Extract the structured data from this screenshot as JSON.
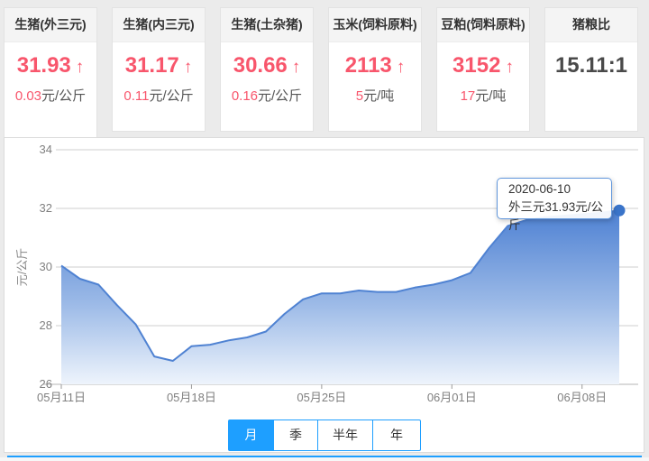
{
  "cards": [
    {
      "title": "生猪(外三元)",
      "value": "31.93",
      "arrow": "↑",
      "change": "0.03",
      "unit": "元/公斤"
    },
    {
      "title": "生猪(内三元)",
      "value": "31.17",
      "arrow": "↑",
      "change": "0.11",
      "unit": "元/公斤"
    },
    {
      "title": "生猪(土杂猪)",
      "value": "30.66",
      "arrow": "↑",
      "change": "0.16",
      "unit": "元/公斤"
    },
    {
      "title": "玉米(饲料原料)",
      "value": "2113",
      "arrow": "↑",
      "change": "5",
      "unit": "元/吨"
    },
    {
      "title": "豆粕(饲料原料)",
      "value": "3152",
      "arrow": "↑",
      "change": "17",
      "unit": "元/吨"
    },
    {
      "title": "猪粮比",
      "value": "15.11:1",
      "arrow": "",
      "change": "",
      "unit": ""
    }
  ],
  "chart_data": {
    "type": "area",
    "series_name": "外三元",
    "ylabel": "元/公斤",
    "ylim": [
      26,
      34
    ],
    "yticks": [
      26,
      28,
      30,
      32,
      34
    ],
    "xtick_labels": [
      "05月11日",
      "05月18日",
      "05月25日",
      "06月01日",
      "06月08日"
    ],
    "xtick_day_index": [
      0,
      7,
      14,
      21,
      28
    ],
    "x_start_date": "2020-05-11",
    "x_end_date": "2020-06-10",
    "values": [
      30.05,
      29.6,
      29.4,
      28.7,
      28.05,
      26.95,
      26.8,
      27.3,
      27.35,
      27.5,
      27.6,
      27.8,
      28.4,
      28.9,
      29.1,
      29.1,
      29.2,
      29.15,
      29.15,
      29.3,
      29.4,
      29.55,
      29.8,
      30.65,
      31.4,
      31.6,
      31.7,
      31.75,
      31.8,
      31.85,
      31.93
    ],
    "grid": true,
    "legend": "none"
  },
  "tooltip": {
    "date": "2020-06-10",
    "text": "外三元31.93元/公斤"
  },
  "tabs": [
    {
      "label": "月",
      "active": true
    },
    {
      "label": "季",
      "active": false
    },
    {
      "label": "半年",
      "active": false
    },
    {
      "label": "年",
      "active": false
    }
  ],
  "colors": {
    "up_red": "#f8566c",
    "neutral_value": "#4a4a4a",
    "accent_blue": "#1e9fff",
    "line_blue": "#4f82d2",
    "dot_blue": "#3a74c9",
    "area_top": "#4a7ed2",
    "area_bottom": "#eef4fc",
    "grid_gray": "#cfcfcf",
    "axis_gray": "#b5b5b5",
    "tooltip_border": "#6197dc"
  }
}
